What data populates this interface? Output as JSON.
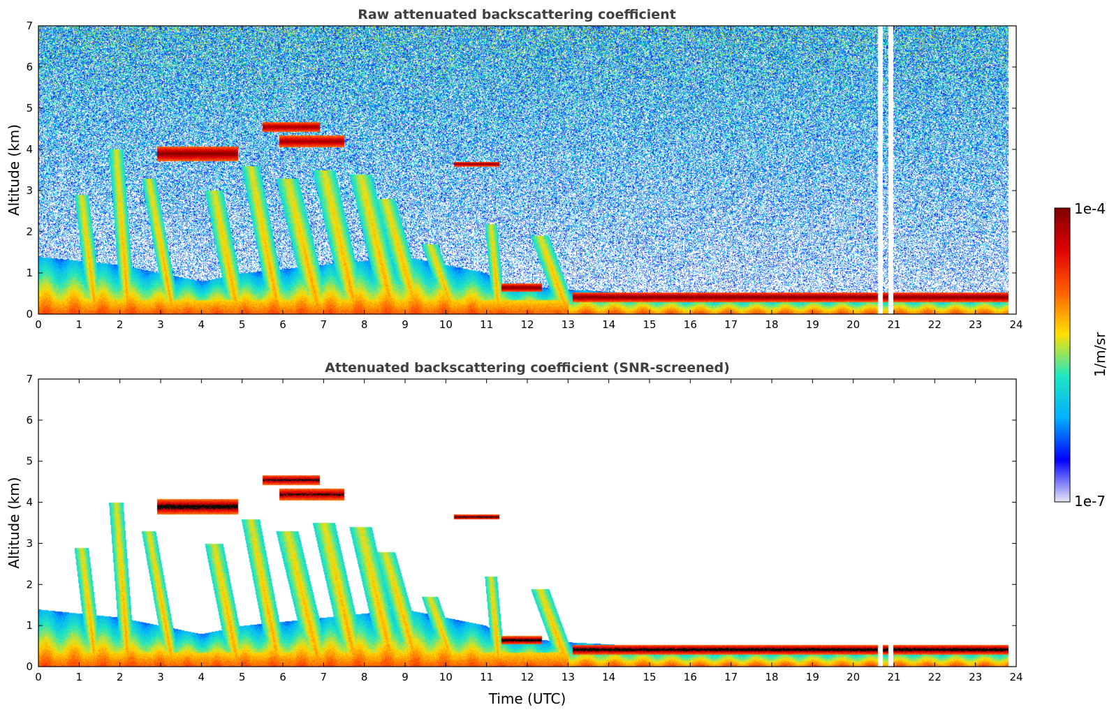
{
  "chart_data": [
    {
      "type": "heatmap",
      "title": "Raw attenuated backscattering coefficient",
      "ylabel": "Altitude (km)",
      "xlabel": "",
      "xlim": [
        0,
        24
      ],
      "ylim": [
        0,
        7
      ],
      "xticks": [
        "0",
        "1",
        "2",
        "3",
        "4",
        "5",
        "6",
        "7",
        "8",
        "9",
        "10",
        "11",
        "12",
        "13",
        "14",
        "15",
        "16",
        "17",
        "18",
        "19",
        "20",
        "21",
        "22",
        "23",
        "24"
      ],
      "yticks": [
        "0",
        "1",
        "2",
        "3",
        "4",
        "5",
        "6",
        "7"
      ],
      "screened": false,
      "features": {
        "boundary_layer_top": [
          [
            0,
            1.4
          ],
          [
            1,
            1.3
          ],
          [
            2,
            1.2
          ],
          [
            3,
            1.0
          ],
          [
            4,
            0.8
          ],
          [
            5,
            1.0
          ],
          [
            6,
            1.1
          ],
          [
            7,
            1.2
          ],
          [
            8,
            1.3
          ],
          [
            9,
            1.4
          ],
          [
            10,
            1.2
          ],
          [
            11,
            1.0
          ],
          [
            11.3,
            0.75
          ],
          [
            13,
            0.6
          ],
          [
            16,
            0.45
          ],
          [
            19,
            0.45
          ],
          [
            23.8,
            0.45
          ]
        ],
        "precipitation_streaks": [
          {
            "x_top": 1.05,
            "y_top": 2.9,
            "x_bottom": 1.4,
            "width_h": 0.35
          },
          {
            "x_top": 1.9,
            "y_top": 4.0,
            "x_bottom": 2.2,
            "width_h": 0.35
          },
          {
            "x_top": 2.7,
            "y_top": 3.3,
            "x_bottom": 3.3,
            "width_h": 0.35
          },
          {
            "x_top": 4.3,
            "y_top": 3.0,
            "x_bottom": 4.9,
            "width_h": 0.45
          },
          {
            "x_top": 5.2,
            "y_top": 3.6,
            "x_bottom": 5.9,
            "width_h": 0.45
          },
          {
            "x_top": 6.1,
            "y_top": 3.3,
            "x_bottom": 6.9,
            "width_h": 0.55
          },
          {
            "x_top": 7.0,
            "y_top": 3.5,
            "x_bottom": 7.8,
            "width_h": 0.55
          },
          {
            "x_top": 7.9,
            "y_top": 3.4,
            "x_bottom": 8.7,
            "width_h": 0.55
          },
          {
            "x_top": 8.5,
            "y_top": 2.8,
            "x_bottom": 9.3,
            "width_h": 0.5
          },
          {
            "x_top": 9.6,
            "y_top": 1.7,
            "x_bottom": 10.2,
            "width_h": 0.4
          },
          {
            "x_top": 11.1,
            "y_top": 2.2,
            "x_bottom": 11.3,
            "width_h": 0.3
          },
          {
            "x_top": 12.3,
            "y_top": 1.9,
            "x_bottom": 13.0,
            "width_h": 0.45
          }
        ],
        "cloud_layers": [
          {
            "x0": 2.9,
            "x1": 4.9,
            "y": 3.9,
            "thickness": 0.18,
            "peak": 1.0
          },
          {
            "x0": 5.5,
            "x1": 6.9,
            "y": 4.55,
            "thickness": 0.12,
            "peak": 0.85
          },
          {
            "x0": 5.9,
            "x1": 7.5,
            "y": 4.2,
            "thickness": 0.14,
            "peak": 0.85
          },
          {
            "x0": 10.2,
            "x1": 11.3,
            "y": 3.65,
            "thickness": 0.06,
            "peak": 0.95
          },
          {
            "x0": 11.35,
            "x1": 12.35,
            "y": 0.65,
            "thickness": 0.1,
            "peak": 1.0
          },
          {
            "x0": 13.1,
            "x1": 23.8,
            "y": 0.42,
            "thickness": 0.12,
            "peak": 1.0
          }
        ],
        "data_gaps": [
          {
            "x0": 20.6,
            "x1": 20.72
          },
          {
            "x0": 20.85,
            "x1": 20.97
          },
          {
            "x0": 23.8,
            "x1": 24.0
          }
        ]
      }
    },
    {
      "type": "heatmap",
      "title": "Attenuated backscattering coefficient (SNR-screened)",
      "ylabel": "Altitude (km)",
      "xlabel": "Time (UTC)",
      "xlim": [
        0,
        24
      ],
      "ylim": [
        0,
        7
      ],
      "xticks": [
        "0",
        "1",
        "2",
        "3",
        "4",
        "5",
        "6",
        "7",
        "8",
        "9",
        "10",
        "11",
        "12",
        "13",
        "14",
        "15",
        "16",
        "17",
        "18",
        "19",
        "20",
        "21",
        "22",
        "23",
        "24"
      ],
      "yticks": [
        "0",
        "1",
        "2",
        "3",
        "4",
        "5",
        "6",
        "7"
      ],
      "screened": true
    }
  ],
  "colorbar": {
    "label": "1/m/sr",
    "max_label": "1e-4",
    "min_label": "1e-7",
    "scale": "log",
    "range": [
      1e-07,
      0.0001
    ],
    "colormap": [
      "#e8e8f4",
      "#0000ff",
      "#00b0ff",
      "#20e8c0",
      "#ffe000",
      "#ff6000",
      "#e00000",
      "#800000"
    ]
  }
}
